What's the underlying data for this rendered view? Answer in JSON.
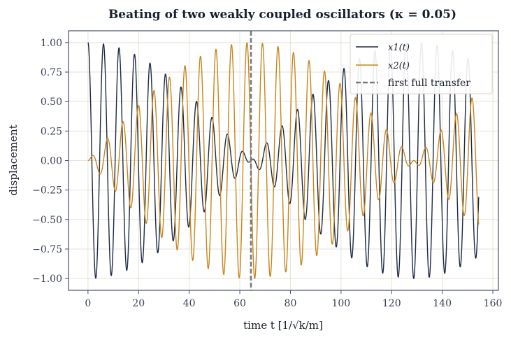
{
  "chart_data": {
    "type": "line",
    "title": "Beating of two weakly coupled oscillators (κ = 0.05)",
    "xlabel": "time  t  [1/√k/m]",
    "ylabel": "displacement",
    "xlim": [
      -7.7,
      162.2
    ],
    "ylim": [
      -1.1,
      1.1
    ],
    "x_ticks": [
      0,
      20,
      40,
      60,
      80,
      100,
      120,
      140,
      160
    ],
    "x_tick_labels": [
      "0",
      "20",
      "40",
      "60",
      "80",
      "100",
      "120",
      "140",
      "160"
    ],
    "y_ticks": [
      1.0,
      0.75,
      0.5,
      0.25,
      0.0,
      -0.25,
      -0.5,
      -0.75,
      -1.0
    ],
    "y_tick_labels": [
      "1.00",
      "0.75",
      "0.50",
      "0.25",
      "0.00",
      "−0.25",
      "−0.50",
      "−0.75",
      "−1.00"
    ],
    "grid": true,
    "legend_position": "top-right",
    "x_range": [
      0,
      154.4
    ],
    "fast_angular_frequency": 1.025,
    "beat_angular_frequency": 0.02439,
    "series": [
      {
        "name": "x1(t)",
        "expression": "cos(beat*t)*cos(fast*t)",
        "color": "#1f2a44"
      },
      {
        "name": "x2(t)",
        "expression": "sin(beat*t)*sin(fast*t)",
        "color": "#c8861d"
      }
    ],
    "annotations": [
      {
        "type": "vline",
        "x": 64.4,
        "label": "first full transfer",
        "style": "dashed",
        "color": "#7a7a7a"
      }
    ]
  },
  "colors": {
    "x1": "#1f2a44",
    "x2": "#c8861d",
    "transfer": "#7a7a7a",
    "grid": "#e7e2d2",
    "frame": "#46506a"
  }
}
